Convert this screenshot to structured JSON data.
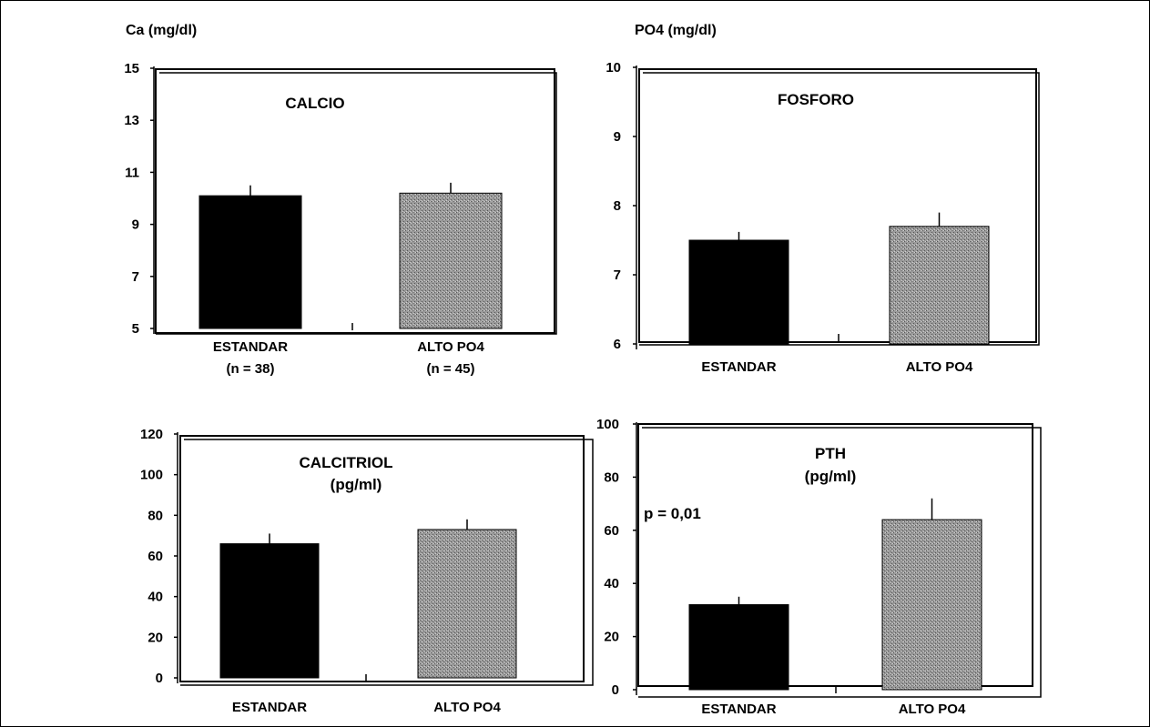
{
  "chart_data": [
    {
      "type": "bar",
      "unit_label": "Ca (mg/dl)",
      "title": "CALCIO",
      "subtitle": "",
      "annotation": "",
      "categories": [
        "ESTANDAR",
        "ALTO PO4"
      ],
      "category_notes": [
        "(n = 38)",
        "(n = 45)"
      ],
      "values": [
        10.1,
        10.2
      ],
      "errors": [
        0.4,
        0.4
      ],
      "colors": [
        "#000000",
        "#8c8c8c"
      ],
      "ylim": [
        5,
        15
      ],
      "yticks": [
        5,
        7,
        9,
        11,
        13,
        15
      ],
      "grid": false
    },
    {
      "type": "bar",
      "unit_label": "PO4 (mg/dl)",
      "title": "FOSFORO",
      "subtitle": "",
      "annotation": "",
      "categories": [
        "ESTANDAR",
        "ALTO PO4"
      ],
      "category_notes": [
        "",
        ""
      ],
      "values": [
        7.5,
        7.7
      ],
      "errors": [
        0.12,
        0.2
      ],
      "colors": [
        "#000000",
        "#8c8c8c"
      ],
      "ylim": [
        6,
        10
      ],
      "yticks": [
        6,
        7,
        8,
        9,
        10
      ],
      "grid": false
    },
    {
      "type": "bar",
      "unit_label": "",
      "title": "CALCITRIOL",
      "subtitle": "(pg/ml)",
      "annotation": "",
      "categories": [
        "ESTANDAR",
        "ALTO PO4"
      ],
      "category_notes": [
        "",
        ""
      ],
      "values": [
        66,
        73
      ],
      "errors": [
        5,
        5
      ],
      "colors": [
        "#000000",
        "#8c8c8c"
      ],
      "ylim": [
        0,
        120
      ],
      "yticks": [
        0,
        20,
        40,
        60,
        80,
        100,
        120
      ],
      "grid": false
    },
    {
      "type": "bar",
      "unit_label": "",
      "title": "PTH",
      "subtitle": "(pg/ml)",
      "annotation": "p = 0,01",
      "categories": [
        "ESTANDAR",
        "ALTO PO4"
      ],
      "category_notes": [
        "",
        ""
      ],
      "values": [
        32,
        64
      ],
      "errors": [
        3,
        8
      ],
      "colors": [
        "#000000",
        "#8c8c8c"
      ],
      "ylim": [
        0,
        100
      ],
      "yticks": [
        0,
        20,
        40,
        60,
        80,
        100
      ],
      "grid": false
    }
  ]
}
